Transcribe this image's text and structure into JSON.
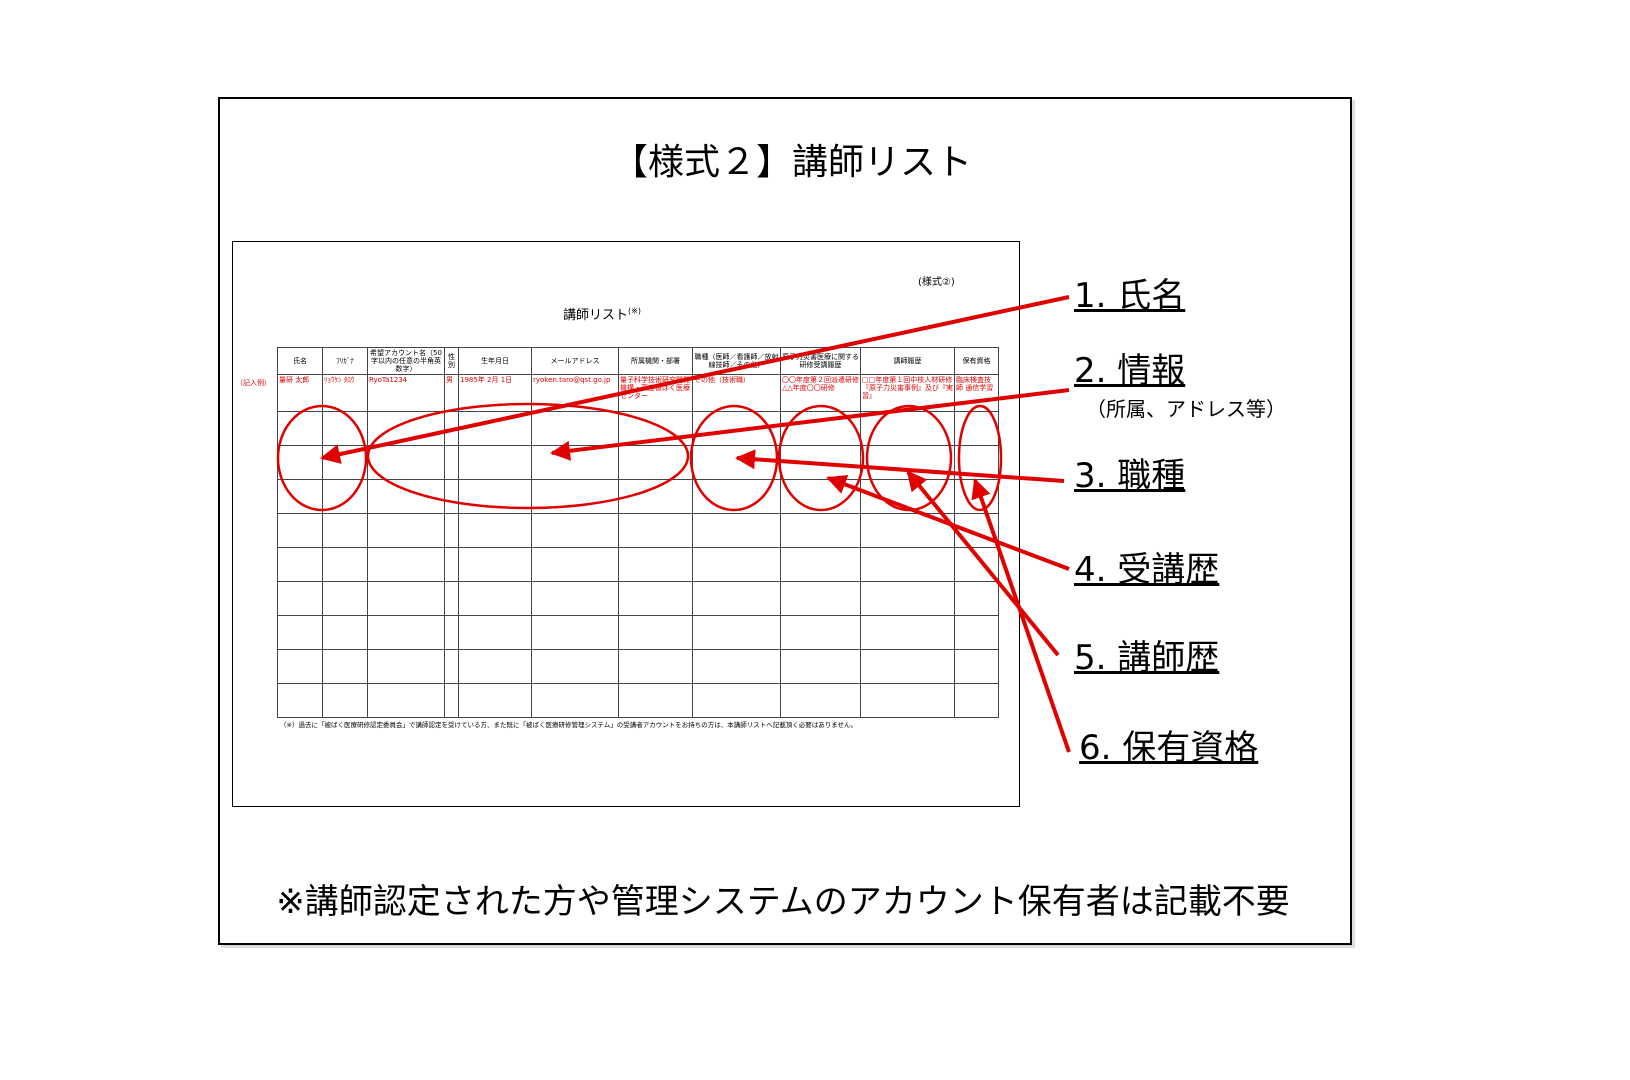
{
  "title": "【様式２】講師リスト",
  "form": {
    "form_label": "(様式②)",
    "form_title": "講師リスト",
    "form_title_note": "(※)",
    "headers": [
      "氏名",
      "ﾌﾘｶﾞﾅ",
      "希望アカウント名（50字以内の任意の半角英数字）",
      "性別",
      "生年月日",
      "メールアドレス",
      "所属機関・部署",
      "職種（医師／看護師／放射線技師／その他）",
      "原子力災害医療に関する研修受講履歴",
      "講師履歴",
      "保有資格"
    ],
    "example_label": "（記入例）",
    "example": [
      "量研 太郎",
      "ﾘｮｳｹﾝ ﾀﾛｳ",
      "RyoTa1234",
      "男",
      "1985年 2月 1日",
      "ryoken.taro@qst.go.jp",
      "量子科学技術研究開発機構・高度被ばく医療センター",
      "その他（技術職）",
      "〇〇年度第２回派遣研修 △△年度〇〇研修",
      "□□年度第１回中核人材研修『原子力災害事例』及び『実習』",
      "臨床検査技師 通信学習"
    ],
    "footnote": "（※）過去に「被ばく医療研修認定委員会」で講師認定を受けている方、また既に「被ばく医療研修管理システム」の受講者アカウントをお持ちの方は、本講師リストへ記載頂く必要はありません。"
  },
  "callouts": [
    {
      "label": "1. 氏名"
    },
    {
      "label": "2. 情報",
      "sublabel": "（所属、アドレス等）"
    },
    {
      "label": "3. 職種"
    },
    {
      "label": "4. 受講歴"
    },
    {
      "label": "5. 講師歴"
    },
    {
      "label": "6. 保有資格"
    }
  ],
  "footer_note": "※講師認定された方や管理システムのアカウント保有者は記載不要"
}
